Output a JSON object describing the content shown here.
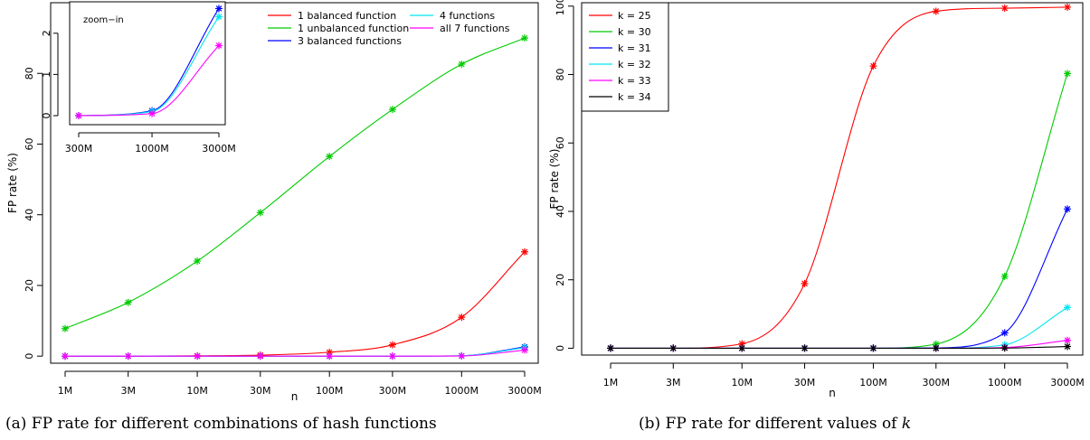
{
  "captions": {
    "a": "(a) FP rate for different combinations of hash functions",
    "b_prefix": "(b) FP rate for different values of ",
    "b_var": "k"
  },
  "chart_data": [
    {
      "type": "line",
      "xlabel": "n",
      "ylabel": "FP rate (%)",
      "x": [
        "1M",
        "3M",
        "10M",
        "30M",
        "100M",
        "300M",
        "1000M",
        "3000M"
      ],
      "ylim": [
        -2,
        100
      ],
      "yticks": [
        0,
        20,
        40,
        60,
        80
      ],
      "marker": "*",
      "legend_position": "top-right",
      "series": [
        {
          "name": "1 balanced function",
          "color": "#ff0000",
          "values": [
            0,
            0,
            0.1,
            0.3,
            1.1,
            3.2,
            11.0,
            29.5
          ]
        },
        {
          "name": "1 unbalanced function",
          "color": "#00cc00",
          "values": [
            7.8,
            15.2,
            26.9,
            40.6,
            56.5,
            69.8,
            82.6,
            90.0
          ]
        },
        {
          "name": "3 balanced functions",
          "color": "#0000ff",
          "values": [
            0,
            0,
            0,
            0,
            0,
            0,
            0.1,
            2.6
          ]
        },
        {
          "name": "4 functions",
          "color": "#00e5ee",
          "values": [
            0,
            0,
            0,
            0,
            0,
            0,
            0.1,
            2.4
          ]
        },
        {
          "name": "all 7 functions",
          "color": "#ff00ff",
          "values": [
            0,
            0,
            0,
            0,
            0,
            0,
            0.05,
            1.7
          ]
        }
      ],
      "inset": {
        "title": "zoom−in",
        "x": [
          "300M",
          "1000M",
          "3000M"
        ],
        "ylim": [
          0,
          2.5
        ],
        "yticks": [
          0,
          1,
          2
        ],
        "series": [
          {
            "color": "#0000ff",
            "values": [
              0,
              0.12,
              2.6
            ]
          },
          {
            "color": "#00e5ee",
            "values": [
              0,
              0.1,
              2.4
            ]
          },
          {
            "color": "#ff00ff",
            "values": [
              0,
              0.05,
              1.7
            ]
          }
        ]
      }
    },
    {
      "type": "line",
      "xlabel": "n",
      "ylabel": "FP rate (%)",
      "x": [
        "1M",
        "3M",
        "10M",
        "30M",
        "100M",
        "300M",
        "1000M",
        "3000M"
      ],
      "ylim": [
        -2,
        101
      ],
      "yticks": [
        0,
        20,
        40,
        60,
        80,
        100
      ],
      "marker": "*",
      "legend_position": "top-left",
      "series": [
        {
          "name": "k = 25",
          "color": "#ff0000",
          "values": [
            0,
            0,
            1.3,
            18.9,
            82.5,
            98.5,
            99.4,
            99.7
          ]
        },
        {
          "name": "k = 30",
          "color": "#00cc00",
          "values": [
            0,
            0,
            0,
            0,
            0,
            1.2,
            21.0,
            80.3
          ]
        },
        {
          "name": "k = 31",
          "color": "#0000ff",
          "values": [
            0,
            0,
            0,
            0,
            0,
            0.1,
            4.5,
            40.7
          ]
        },
        {
          "name": "k = 32",
          "color": "#00e5ee",
          "values": [
            0,
            0,
            0,
            0,
            0,
            0,
            1.0,
            11.9
          ]
        },
        {
          "name": "k = 33",
          "color": "#ff00ff",
          "values": [
            0,
            0,
            0,
            0,
            0,
            0,
            0.2,
            2.3
          ]
        },
        {
          "name": "k = 34",
          "color": "#000000",
          "values": [
            0,
            0,
            0,
            0,
            0,
            0,
            0.05,
            0.5
          ]
        }
      ]
    }
  ]
}
